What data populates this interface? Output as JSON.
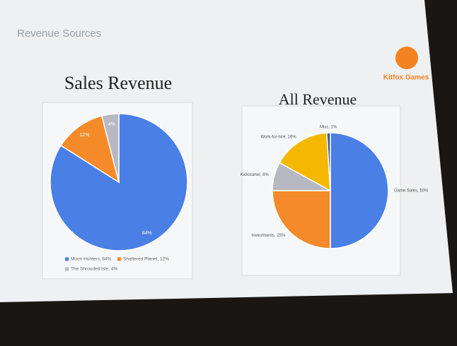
{
  "slide": {
    "title": "Revenue Sources",
    "logo": "Kitfox Games"
  },
  "chart_data": [
    {
      "type": "pie",
      "title": "Sales Revenue",
      "categories": [
        "Moon Hunters, 84%",
        "Shattered Planet, 12%",
        "The Shrouded Isle, 4%"
      ],
      "values": [
        84,
        12,
        4
      ],
      "value_labels": [
        "84%",
        "12%",
        "4%"
      ],
      "colors": [
        "#4a7fe6",
        "#f58a2a",
        "#b8b8c2"
      ],
      "legend": "bottom"
    },
    {
      "type": "pie",
      "title": "All Revenue",
      "categories": [
        "Game Sales, 50%",
        "Investments, 25%",
        "Kickstarter, 8%",
        "Work-for-hire, 16%",
        "Misc, 1%"
      ],
      "values": [
        50,
        25,
        8,
        16,
        1
      ],
      "colors": [
        "#4a7fe6",
        "#f58a2a",
        "#b8b8c2",
        "#f5b800",
        "#3a5f9e"
      ]
    }
  ]
}
